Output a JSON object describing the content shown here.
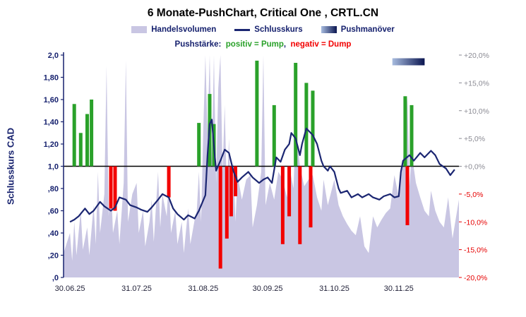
{
  "header": {
    "title": "6 Monate-PushChart, Critical One , CRTL.CN"
  },
  "legend": {
    "volume": "Handelsvolumen",
    "close": "Schlusskurs",
    "push": "Pushmanöver",
    "strength_label": "Pushstärke:",
    "positive": "positiv = Pump",
    "separator": ",",
    "negative": "negativ = Dump"
  },
  "axes": {
    "left_label": "Schlusskurs CAD"
  },
  "colors": {
    "navy": "#16216e",
    "volume_fill": "#c9c6e3",
    "pump_green": "#2aa12a",
    "dump_red": "#f20000",
    "right_positive": "#8a8a93",
    "right_negative": "#e60000",
    "baseline_black": "#000000"
  },
  "chart_data": {
    "type": "composite",
    "title": "6 Monate-PushChart, Critical One , CRTL.CN",
    "x_axis": {
      "tick_labels": [
        "30.06.25",
        "31.07.25",
        "31.08.25",
        "30.09.25",
        "31.10.25",
        "30.11.25"
      ],
      "tick_days": [
        0,
        31,
        62,
        92,
        123,
        153
      ],
      "day_range": [
        -3,
        181
      ]
    },
    "y_left": {
      "label": "Schlusskurs CAD",
      "range": [
        0,
        2
      ],
      "tick_values": [
        2.0,
        1.8,
        1.6,
        1.4,
        1.2,
        1.0,
        0.8,
        0.6,
        0.4,
        0.2,
        0.0
      ],
      "tick_labels": [
        "2,0",
        "1,80",
        "1,60",
        "1,40",
        "1,20",
        "1,0",
        ",80",
        ",60",
        ",40",
        ",20",
        ",0"
      ]
    },
    "y_right": {
      "range_pct": [
        -20,
        20
      ],
      "tick_pcts": [
        20,
        15,
        10,
        5,
        0,
        -5,
        -10,
        -15,
        -20
      ],
      "tick_labels": [
        "+20,0%",
        "+15,0%",
        "+10,0%",
        "+5,0%",
        "+0,0%",
        "-5,0%",
        "-10,0%",
        "-15,0%",
        "-20,0%"
      ]
    },
    "baseline": 1.0,
    "volume": {
      "name": "Handelsvolumen",
      "color": "#c9c6e3",
      "points": [
        [
          -3,
          0.22
        ],
        [
          0,
          0.4
        ],
        [
          1,
          0.15
        ],
        [
          2,
          0.5
        ],
        [
          3,
          0.2
        ],
        [
          5,
          0.6
        ],
        [
          6,
          0.25
        ],
        [
          8,
          0.45
        ],
        [
          9,
          0.2
        ],
        [
          11,
          0.65
        ],
        [
          12,
          0.3
        ],
        [
          13,
          0.95
        ],
        [
          14,
          0.4
        ],
        [
          16,
          0.75
        ],
        [
          17,
          1.9
        ],
        [
          18,
          0.55
        ],
        [
          19,
          0.9
        ],
        [
          20,
          0.4
        ],
        [
          22,
          0.6
        ],
        [
          23,
          0.3
        ],
        [
          25,
          0.85
        ],
        [
          26,
          1.95
        ],
        [
          27,
          0.5
        ],
        [
          29,
          0.75
        ],
        [
          31,
          0.85
        ],
        [
          32,
          0.4
        ],
        [
          34,
          0.6
        ],
        [
          35,
          0.28
        ],
        [
          37,
          0.5
        ],
        [
          38,
          0.7
        ],
        [
          39,
          0.32
        ],
        [
          41,
          0.95
        ],
        [
          42,
          0.45
        ],
        [
          43,
          0.75
        ],
        [
          45,
          0.55
        ],
        [
          46,
          0.9
        ],
        [
          47,
          0.4
        ],
        [
          49,
          0.6
        ],
        [
          50,
          0.3
        ],
        [
          52,
          0.5
        ],
        [
          53,
          0.22
        ],
        [
          55,
          0.62
        ],
        [
          56,
          0.3
        ],
        [
          58,
          0.52
        ],
        [
          59,
          0.6
        ],
        [
          60,
          0.95
        ],
        [
          61,
          0.5
        ],
        [
          62,
          1.3
        ],
        [
          63,
          2.0
        ],
        [
          64,
          1.3
        ],
        [
          65,
          2.0
        ],
        [
          66,
          1.05
        ],
        [
          67,
          2.0
        ],
        [
          68,
          0.85
        ],
        [
          69,
          1.7
        ],
        [
          70,
          2.0
        ],
        [
          71,
          0.95
        ],
        [
          72,
          1.55
        ],
        [
          73,
          0.75
        ],
        [
          74,
          1.25
        ],
        [
          75,
          0.6
        ],
        [
          76,
          1.05
        ],
        [
          77,
          0.5
        ],
        [
          78,
          0.92
        ],
        [
          80,
          0.7
        ],
        [
          82,
          0.88
        ],
        [
          84,
          0.92
        ],
        [
          85,
          0.45
        ],
        [
          87,
          0.65
        ],
        [
          89,
          0.95
        ],
        [
          90,
          2.0
        ],
        [
          91,
          0.65
        ],
        [
          93,
          0.85
        ],
        [
          95,
          0.7
        ],
        [
          97,
          0.95
        ],
        [
          99,
          0.88
        ],
        [
          101,
          0.72
        ],
        [
          102,
          1.0
        ],
        [
          104,
          0.8
        ],
        [
          105,
          1.35
        ],
        [
          107,
          1.0
        ],
        [
          109,
          0.82
        ],
        [
          111,
          0.88
        ],
        [
          113,
          0.92
        ],
        [
          115,
          0.72
        ],
        [
          117,
          0.6
        ],
        [
          118,
          0.88
        ],
        [
          120,
          0.65
        ],
        [
          123,
          0.88
        ],
        [
          125,
          0.65
        ],
        [
          127,
          0.55
        ],
        [
          129,
          0.48
        ],
        [
          131,
          0.42
        ],
        [
          133,
          0.38
        ],
        [
          135,
          0.55
        ],
        [
          137,
          0.28
        ],
        [
          139,
          0.22
        ],
        [
          141,
          0.55
        ],
        [
          143,
          0.45
        ],
        [
          145,
          0.52
        ],
        [
          147,
          0.58
        ],
        [
          149,
          0.62
        ],
        [
          151,
          0.92
        ],
        [
          153,
          0.72
        ],
        [
          155,
          1.05
        ],
        [
          157,
          1.62
        ],
        [
          158,
          0.82
        ],
        [
          159,
          1.12
        ],
        [
          161,
          0.85
        ],
        [
          163,
          0.72
        ],
        [
          165,
          0.6
        ],
        [
          167,
          0.55
        ],
        [
          168,
          0.78
        ],
        [
          170,
          0.6
        ],
        [
          172,
          0.5
        ],
        [
          174,
          0.45
        ],
        [
          176,
          0.72
        ],
        [
          178,
          0.35
        ],
        [
          181,
          0.7
        ]
      ]
    },
    "close": {
      "name": "Schlusskurs",
      "color": "#1b2672",
      "points": [
        [
          0,
          0.5
        ],
        [
          2,
          0.52
        ],
        [
          4,
          0.55
        ],
        [
          7,
          0.62
        ],
        [
          9,
          0.57
        ],
        [
          11,
          0.6
        ],
        [
          14,
          0.68
        ],
        [
          16,
          0.64
        ],
        [
          19,
          0.6
        ],
        [
          21,
          0.63
        ],
        [
          23,
          0.72
        ],
        [
          26,
          0.7
        ],
        [
          28,
          0.65
        ],
        [
          31,
          0.63
        ],
        [
          33,
          0.61
        ],
        [
          36,
          0.59
        ],
        [
          38,
          0.63
        ],
        [
          41,
          0.7
        ],
        [
          43,
          0.75
        ],
        [
          46,
          0.72
        ],
        [
          48,
          0.62
        ],
        [
          50,
          0.57
        ],
        [
          53,
          0.52
        ],
        [
          55,
          0.56
        ],
        [
          58,
          0.53
        ],
        [
          60,
          0.6
        ],
        [
          63,
          0.74
        ],
        [
          64,
          1.1
        ],
        [
          65,
          1.38
        ],
        [
          66,
          1.42
        ],
        [
          67,
          1.18
        ],
        [
          68,
          0.96
        ],
        [
          70,
          1.05
        ],
        [
          72,
          1.15
        ],
        [
          74,
          1.12
        ],
        [
          76,
          0.96
        ],
        [
          78,
          0.86
        ],
        [
          80,
          0.9
        ],
        [
          83,
          0.95
        ],
        [
          85,
          0.9
        ],
        [
          88,
          0.85
        ],
        [
          90,
          0.88
        ],
        [
          92,
          0.9
        ],
        [
          94,
          0.85
        ],
        [
          96,
          1.08
        ],
        [
          98,
          1.04
        ],
        [
          100,
          1.15
        ],
        [
          102,
          1.2
        ],
        [
          103,
          1.3
        ],
        [
          105,
          1.25
        ],
        [
          107,
          1.1
        ],
        [
          108,
          1.2
        ],
        [
          110,
          1.34
        ],
        [
          112,
          1.3
        ],
        [
          113,
          1.28
        ],
        [
          115,
          1.2
        ],
        [
          117,
          1.05
        ],
        [
          118,
          1.0
        ],
        [
          120,
          0.96
        ],
        [
          121,
          1.0
        ],
        [
          123,
          0.95
        ],
        [
          125,
          0.8
        ],
        [
          126,
          0.76
        ],
        [
          129,
          0.78
        ],
        [
          131,
          0.72
        ],
        [
          134,
          0.75
        ],
        [
          136,
          0.72
        ],
        [
          139,
          0.75
        ],
        [
          141,
          0.72
        ],
        [
          144,
          0.7
        ],
        [
          146,
          0.73
        ],
        [
          149,
          0.75
        ],
        [
          151,
          0.72
        ],
        [
          153,
          0.73
        ],
        [
          154,
          0.95
        ],
        [
          155,
          1.05
        ],
        [
          158,
          1.1
        ],
        [
          160,
          1.05
        ],
        [
          163,
          1.12
        ],
        [
          165,
          1.08
        ],
        [
          168,
          1.14
        ],
        [
          170,
          1.1
        ],
        [
          172,
          1.02
        ],
        [
          175,
          0.98
        ],
        [
          177,
          0.92
        ],
        [
          179,
          0.97
        ]
      ]
    },
    "pump_bars": {
      "name": "Pump",
      "color": "#2aa12a",
      "bars": [
        [
          2,
          1.56
        ],
        [
          5,
          1.3
        ],
        [
          8,
          1.47
        ],
        [
          10,
          1.6
        ],
        [
          60,
          1.39
        ],
        [
          65,
          1.65
        ],
        [
          67,
          1.38
        ],
        [
          87,
          1.95
        ],
        [
          95,
          1.55
        ],
        [
          105,
          1.93
        ],
        [
          110,
          1.75
        ],
        [
          113,
          1.68
        ],
        [
          156,
          1.63
        ],
        [
          159,
          1.55
        ]
      ]
    },
    "dump_bars": {
      "name": "Dump",
      "color": "#f20000",
      "bars": [
        [
          19,
          0.62
        ],
        [
          21,
          0.6
        ],
        [
          46,
          0.72
        ],
        [
          70,
          0.08
        ],
        [
          73,
          0.35
        ],
        [
          75,
          0.55
        ],
        [
          77,
          0.73
        ],
        [
          99,
          0.3
        ],
        [
          102,
          0.55
        ],
        [
          107,
          0.3
        ],
        [
          112,
          0.45
        ],
        [
          157,
          0.47
        ]
      ]
    },
    "push_maneuver": {
      "name": "Pushmanöver",
      "day_start": 150,
      "day_end": 165,
      "price_y": 1.94,
      "colors": [
        "#a8bcdf",
        "#0a1550"
      ]
    }
  }
}
